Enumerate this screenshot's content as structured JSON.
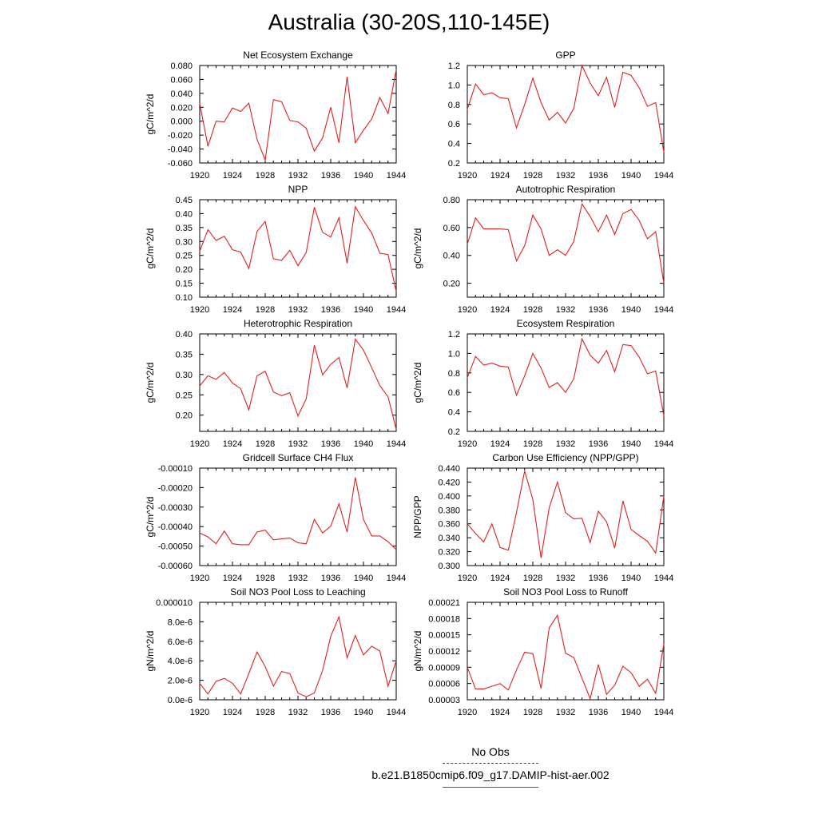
{
  "title": "Australia (30-20S,110-145E)",
  "legend": {
    "obs_label": "No Obs",
    "obs_color": "#3333cc",
    "case_label": "b.e21.B1850cmip6.f09_g17.DAMIP-hist-aer.002",
    "case_color": "#e02020"
  },
  "chart_data": [
    {
      "type": "line",
      "title": "Net Ecosystem Exchange",
      "ylabel": "gC/m^2/d",
      "xlim": [
        1920,
        1944
      ],
      "ylim": [
        -0.06,
        0.08
      ],
      "xticks": [
        "1920",
        "1924",
        "1928",
        "1932",
        "1936",
        "1940",
        "1944"
      ],
      "yticks": [
        "-0.060",
        "-0.040",
        "-0.020",
        "0.000",
        "0.020",
        "0.040",
        "0.060",
        "0.080"
      ],
      "ytick_values": [
        -0.06,
        -0.04,
        -0.02,
        0,
        0.02,
        0.04,
        0.06,
        0.08
      ],
      "series": [
        {
          "x_start": 1920,
          "values": [
            0.026,
            -0.036,
            0.0,
            -0.001,
            0.019,
            0.014,
            0.026,
            -0.026,
            -0.056,
            0.031,
            0.028,
            0.001,
            -0.001,
            -0.01,
            -0.043,
            -0.024,
            0.02,
            -0.031,
            0.064,
            -0.031,
            -0.013,
            0.003,
            0.034,
            0.011,
            0.074
          ]
        }
      ]
    },
    {
      "type": "line",
      "title": "GPP",
      "ylabel": "",
      "xlim": [
        1920,
        1944
      ],
      "ylim": [
        0.2,
        1.2
      ],
      "xticks": [
        "1920",
        "1924",
        "1928",
        "1932",
        "1936",
        "1940",
        "1944"
      ],
      "yticks": [
        "0.2",
        "0.4",
        "0.6",
        "0.8",
        "1.0",
        "1.2"
      ],
      "ytick_values": [
        0.2,
        0.4,
        0.6,
        0.8,
        1.0,
        1.2
      ],
      "series": [
        {
          "x_start": 1920,
          "values": [
            0.75,
            1.01,
            0.9,
            0.92,
            0.87,
            0.86,
            0.56,
            0.8,
            1.07,
            0.82,
            0.64,
            0.72,
            0.61,
            0.76,
            1.2,
            1.02,
            0.89,
            1.08,
            0.77,
            1.13,
            1.1,
            0.97,
            0.78,
            0.82,
            0.31
          ]
        }
      ]
    },
    {
      "type": "line",
      "title": "NPP",
      "ylabel": "gC/m^2/d",
      "xlim": [
        1920,
        1944
      ],
      "ylim": [
        0.1,
        0.45
      ],
      "xticks": [
        "1920",
        "1924",
        "1928",
        "1932",
        "1936",
        "1940",
        "1944"
      ],
      "yticks": [
        "0.10",
        "0.15",
        "0.20",
        "0.25",
        "0.30",
        "0.35",
        "0.40",
        "0.45"
      ],
      "ytick_values": [
        0.1,
        0.15,
        0.2,
        0.25,
        0.3,
        0.35,
        0.4,
        0.45
      ],
      "series": [
        {
          "x_start": 1920,
          "values": [
            0.265,
            0.342,
            0.304,
            0.319,
            0.27,
            0.262,
            0.203,
            0.336,
            0.372,
            0.238,
            0.232,
            0.268,
            0.213,
            0.26,
            0.423,
            0.333,
            0.316,
            0.385,
            0.222,
            0.425,
            0.375,
            0.33,
            0.258,
            0.253,
            0.12
          ]
        }
      ]
    },
    {
      "type": "line",
      "title": "Autotrophic Respiration",
      "ylabel": "gC/m^2/d",
      "xlim": [
        1920,
        1944
      ],
      "ylim": [
        0.1,
        0.8
      ],
      "xticks": [
        "1920",
        "1924",
        "1928",
        "1932",
        "1936",
        "1940",
        "1944"
      ],
      "yticks": [
        "0.20",
        "0.40",
        "0.60",
        "0.80"
      ],
      "ytick_values": [
        0.2,
        0.4,
        0.6,
        0.8
      ],
      "series": [
        {
          "x_start": 1920,
          "values": [
            0.48,
            0.67,
            0.59,
            0.59,
            0.59,
            0.585,
            0.36,
            0.47,
            0.69,
            0.59,
            0.4,
            0.44,
            0.4,
            0.5,
            0.77,
            0.68,
            0.57,
            0.69,
            0.55,
            0.7,
            0.73,
            0.65,
            0.52,
            0.57,
            0.2
          ]
        }
      ]
    },
    {
      "type": "line",
      "title": "Heterotrophic Respiration",
      "ylabel": "gC/m^2/d",
      "xlim": [
        1920,
        1944
      ],
      "ylim": [
        0.16,
        0.4
      ],
      "xticks": [
        "1920",
        "1924",
        "1928",
        "1932",
        "1936",
        "1940",
        "1944"
      ],
      "yticks": [
        "0.20",
        "0.25",
        "0.30",
        "0.35",
        "0.40"
      ],
      "ytick_values": [
        0.2,
        0.25,
        0.3,
        0.35,
        0.4
      ],
      "series": [
        {
          "x_start": 1920,
          "values": [
            0.272,
            0.297,
            0.288,
            0.305,
            0.279,
            0.265,
            0.213,
            0.297,
            0.308,
            0.257,
            0.248,
            0.255,
            0.198,
            0.24,
            0.372,
            0.299,
            0.325,
            0.342,
            0.267,
            0.387,
            0.36,
            0.317,
            0.273,
            0.245,
            0.165
          ]
        }
      ]
    },
    {
      "type": "line",
      "title": "Ecosystem Respiration",
      "ylabel": "gC/m^2/d",
      "xlim": [
        1920,
        1944
      ],
      "ylim": [
        0.2,
        1.2
      ],
      "xticks": [
        "1920",
        "1924",
        "1928",
        "1932",
        "1936",
        "1940",
        "1944"
      ],
      "yticks": [
        "0.2",
        "0.4",
        "0.6",
        "0.8",
        "1.0",
        "1.2"
      ],
      "ytick_values": [
        0.2,
        0.4,
        0.6,
        0.8,
        1.0,
        1.2
      ],
      "series": [
        {
          "x_start": 1920,
          "values": [
            0.75,
            0.97,
            0.88,
            0.9,
            0.87,
            0.86,
            0.57,
            0.77,
            1.0,
            0.85,
            0.65,
            0.7,
            0.6,
            0.74,
            1.15,
            0.98,
            0.9,
            1.03,
            0.81,
            1.09,
            1.08,
            0.96,
            0.79,
            0.82,
            0.36
          ]
        }
      ]
    },
    {
      "type": "line",
      "title": "Gridcell Surface CH4 Flux",
      "ylabel": "gC/m^2/d",
      "xlim": [
        1920,
        1944
      ],
      "ylim": [
        -0.0006,
        -0.0001
      ],
      "xticks": [
        "1920",
        "1924",
        "1928",
        "1932",
        "1936",
        "1940",
        "1944"
      ],
      "yticks": [
        "-0.00060",
        "-0.00050",
        "-0.00040",
        "-0.00030",
        "-0.00020",
        "-0.00010"
      ],
      "ytick_values": [
        -0.0006,
        -0.0005,
        -0.0004,
        -0.0003,
        -0.0002,
        -0.0001
      ],
      "series": [
        {
          "x_start": 1920,
          "values": [
            -0.000433,
            -0.000453,
            -0.000488,
            -0.000423,
            -0.000488,
            -0.000493,
            -0.000493,
            -0.000428,
            -0.000418,
            -0.000468,
            -0.000463,
            -0.000458,
            -0.000483,
            -0.000488,
            -0.000363,
            -0.000433,
            -0.000398,
            -0.000283,
            -0.000428,
            -0.000148,
            -0.000363,
            -0.000448,
            -0.000448,
            -0.000478,
            -0.000518
          ]
        }
      ]
    },
    {
      "type": "line",
      "title": "Carbon Use Efficiency (NPP/GPP)",
      "ylabel": "NPP/GPP",
      "xlim": [
        1920,
        1944
      ],
      "ylim": [
        0.3,
        0.44
      ],
      "xticks": [
        "1920",
        "1924",
        "1928",
        "1932",
        "1936",
        "1940",
        "1944"
      ],
      "yticks": [
        "0.300",
        "0.320",
        "0.340",
        "0.360",
        "0.380",
        "0.400",
        "0.420",
        "0.440"
      ],
      "ytick_values": [
        0.3,
        0.32,
        0.34,
        0.36,
        0.38,
        0.4,
        0.42,
        0.44
      ],
      "series": [
        {
          "x_start": 1920,
          "values": [
            0.36,
            0.346,
            0.334,
            0.36,
            0.326,
            0.322,
            0.376,
            0.436,
            0.395,
            0.311,
            0.383,
            0.42,
            0.376,
            0.367,
            0.368,
            0.333,
            0.378,
            0.363,
            0.325,
            0.393,
            0.352,
            0.343,
            0.335,
            0.318,
            0.4
          ]
        }
      ]
    },
    {
      "type": "line",
      "title": "Soil NO3 Pool Loss to Leaching",
      "ylabel": "gN/m^2/d",
      "xlim": [
        1920,
        1944
      ],
      "ylim": [
        0.0,
        1e-05
      ],
      "xticks": [
        "1920",
        "1924",
        "1928",
        "1932",
        "1936",
        "1940",
        "1944"
      ],
      "yticks": [
        "0.0e-6",
        "2.0e-6",
        "4.0e-6",
        "6.0e-6",
        "8.0e-6",
        "0.000010"
      ],
      "ytick_values": [
        0,
        2e-06,
        4e-06,
        6e-06,
        8e-06,
        1e-05
      ],
      "series": [
        {
          "x_start": 1920,
          "values": [
            1.7e-06,
            6e-07,
            1.9e-06,
            2.2e-06,
            1.7e-06,
            6e-07,
            2.7e-06,
            4.9e-06,
            3.4e-06,
            1.4e-06,
            2.9e-06,
            2.7e-06,
            7e-07,
            3e-07,
            7e-07,
            3e-06,
            6.5e-06,
            8.5e-06,
            4.3e-06,
            6.6e-06,
            4.6e-06,
            5.5e-06,
            5e-06,
            1.4e-06,
            4e-06
          ]
        }
      ]
    },
    {
      "type": "line",
      "title": "Soil NO3 Pool Loss to Runoff",
      "ylabel": "gN/m^2/d",
      "xlim": [
        1920,
        1944
      ],
      "ylim": [
        3e-05,
        0.00021
      ],
      "xticks": [
        "1920",
        "1924",
        "1928",
        "1932",
        "1936",
        "1940",
        "1944"
      ],
      "yticks": [
        "0.00003",
        "0.00006",
        "0.00009",
        "0.00012",
        "0.00015",
        "0.00018",
        "0.00021"
      ],
      "ytick_values": [
        3e-05,
        6e-05,
        9e-05,
        0.00012,
        0.00015,
        0.00018,
        0.00021
      ],
      "series": [
        {
          "x_start": 1920,
          "values": [
            9e-05,
            5e-05,
            5e-05,
            5.5e-05,
            6e-05,
            4.8e-05,
            8.5e-05,
            0.000118,
            0.000115,
            5.1e-05,
            0.000163,
            0.000186,
            0.000116,
            0.000108,
            7e-05,
            3.2e-05,
            9.5e-05,
            4e-05,
            5.7e-05,
            9.2e-05,
            8e-05,
            5.5e-05,
            6.8e-05,
            4.2e-05,
            0.000133
          ]
        }
      ]
    }
  ]
}
